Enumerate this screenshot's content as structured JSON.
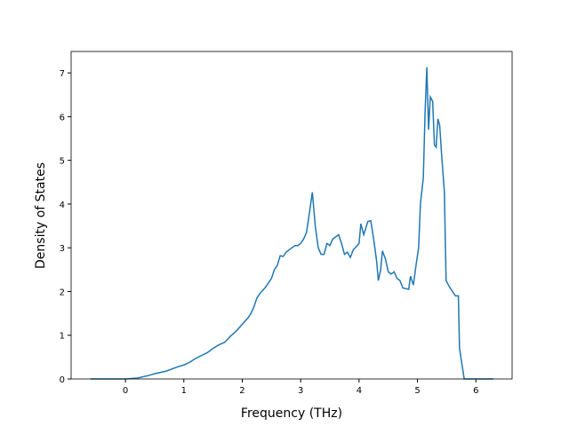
{
  "chart_data": {
    "type": "line",
    "x_label": "Frequency (THz)",
    "y_label": "Density of States",
    "xlim": [
      -0.93,
      6.62
    ],
    "ylim": [
      0,
      7.49
    ],
    "xticks": [
      0,
      1,
      2,
      3,
      4,
      5,
      6
    ],
    "yticks": [
      0,
      1,
      2,
      3,
      4,
      5,
      6,
      7
    ],
    "x": [
      -0.6,
      -0.2,
      0,
      0.2,
      0.4,
      0.5,
      0.7,
      0.9,
      1.0,
      1.1,
      1.2,
      1.4,
      1.5,
      1.6,
      1.7,
      1.8,
      1.9,
      2.0,
      2.1,
      2.15,
      2.2,
      2.25,
      2.3,
      2.4,
      2.5,
      2.55,
      2.6,
      2.65,
      2.7,
      2.75,
      2.85,
      2.9,
      2.95,
      3.0,
      3.05,
      3.1,
      3.15,
      3.2,
      3.25,
      3.3,
      3.35,
      3.4,
      3.45,
      3.5,
      3.55,
      3.6,
      3.65,
      3.7,
      3.75,
      3.8,
      3.85,
      3.9,
      4.0,
      4.03,
      4.08,
      4.15,
      4.2,
      4.25,
      4.3,
      4.33,
      4.37,
      4.4,
      4.45,
      4.5,
      4.55,
      4.6,
      4.65,
      4.7,
      4.75,
      4.85,
      4.88,
      4.93,
      4.98,
      5.02,
      5.05,
      5.1,
      5.13,
      5.16,
      5.19,
      5.22,
      5.26,
      5.29,
      5.32,
      5.35,
      5.38,
      5.42,
      5.46,
      5.49,
      5.55,
      5.6,
      5.65,
      5.7,
      5.72,
      5.8,
      6.0,
      6.3
    ],
    "series": [
      {
        "color": "#1f77b4",
        "values": [
          0,
          0,
          0,
          0.02,
          0.08,
          0.12,
          0.18,
          0.28,
          0.32,
          0.38,
          0.47,
          0.6,
          0.7,
          0.78,
          0.84,
          0.98,
          1.1,
          1.25,
          1.4,
          1.5,
          1.65,
          1.85,
          1.95,
          2.1,
          2.3,
          2.5,
          2.6,
          2.82,
          2.8,
          2.9,
          3.0,
          3.05,
          3.05,
          3.1,
          3.2,
          3.35,
          3.8,
          4.27,
          3.5,
          3.0,
          2.85,
          2.85,
          3.1,
          3.05,
          3.2,
          3.25,
          3.3,
          3.1,
          2.85,
          2.9,
          2.78,
          2.95,
          3.1,
          3.55,
          3.3,
          3.6,
          3.62,
          3.2,
          2.7,
          2.25,
          2.5,
          2.93,
          2.75,
          2.45,
          2.4,
          2.45,
          2.3,
          2.25,
          2.08,
          2.05,
          2.35,
          2.15,
          2.65,
          3.0,
          4.0,
          4.6,
          6.1,
          7.13,
          5.7,
          6.45,
          6.35,
          5.35,
          5.3,
          5.95,
          5.8,
          5.0,
          4.3,
          2.25,
          2.1,
          2.0,
          1.9,
          1.9,
          0.7,
          0,
          0,
          0
        ]
      }
    ]
  }
}
